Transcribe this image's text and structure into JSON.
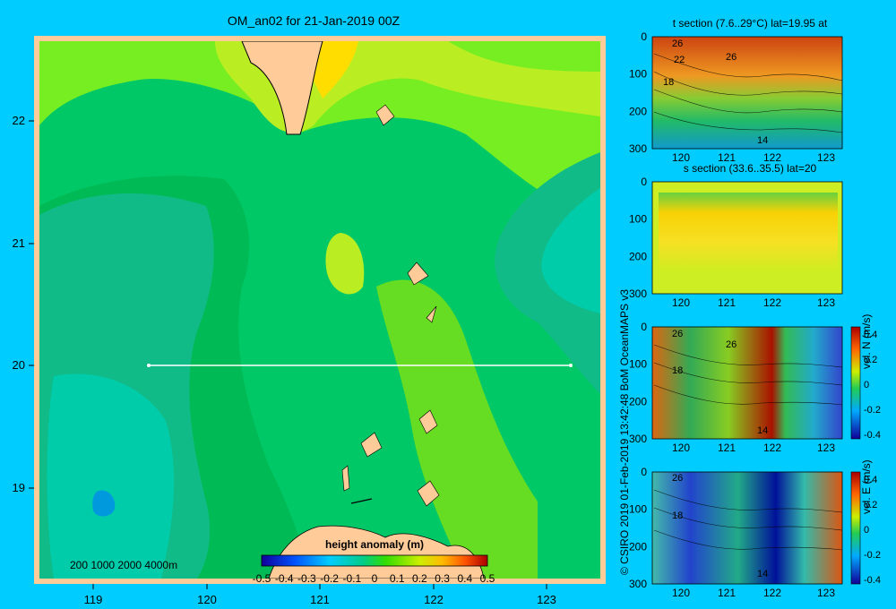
{
  "main": {
    "title": "OM_an02 for 21-Jan-2019 00Z",
    "depth_legend": "200  1000  2000  4000m",
    "colorbar_label": "height anomaly (m)",
    "colorbar_ticks": [
      "-0.5",
      "-0.4",
      "-0.3",
      "-0.2",
      "-0.1",
      "0",
      "0.1",
      "0.2",
      "0.3",
      "0.4",
      "0.5"
    ],
    "xticks": [
      "119",
      "120",
      "121",
      "122",
      "123"
    ],
    "yticks": [
      "22",
      "21",
      "20",
      "19"
    ]
  },
  "panels": {
    "t_title": "t section (7.6..29°C) lat=19.95 at",
    "s_title": "s section (33.6..35.5) lat=20",
    "vn_label": "vel. N (m/s)",
    "ve_label": "vel. E (m/s)",
    "depth_ticks": [
      "0",
      "100",
      "200",
      "300"
    ],
    "lon_ticks": [
      "120",
      "121",
      "122",
      "123"
    ],
    "vel_ticks": [
      "0.4",
      "0.2",
      "0",
      "-0.2",
      "-0.4"
    ],
    "contour_labels": [
      "26",
      "22",
      "18",
      "14"
    ]
  },
  "credit": "© CSIRO 2019   01-Feb-2019 13:42:48 BoM OceanMAPS v3",
  "chart_data": [
    {
      "type": "heatmap",
      "title": "OM_an02 for 21-Jan-2019 00Z",
      "variable": "height anomaly (m)",
      "xlim": [
        118.5,
        123.5
      ],
      "ylim": [
        18.3,
        22.7
      ],
      "color_range": [
        -0.5,
        0.5
      ],
      "section_line": {
        "lat": 20,
        "lon_from": 119.5,
        "lon_to": 123.2
      }
    },
    {
      "type": "heatmap",
      "title": "t section (7.6..29°C) lat=19.95 at",
      "ylim": [
        300,
        0
      ],
      "xlim": [
        119.5,
        123.2
      ]
    },
    {
      "type": "heatmap",
      "title": "s section (33.6..35.5) lat=20",
      "ylim": [
        300,
        0
      ],
      "xlim": [
        119.5,
        123.2
      ]
    },
    {
      "type": "heatmap",
      "title": "vel. N (m/s)",
      "ylim": [
        300,
        0
      ],
      "color_range": [
        -0.4,
        0.4
      ]
    },
    {
      "type": "heatmap",
      "title": "vel. E (m/s)",
      "ylim": [
        300,
        0
      ],
      "color_range": [
        -0.4,
        0.4
      ]
    }
  ]
}
